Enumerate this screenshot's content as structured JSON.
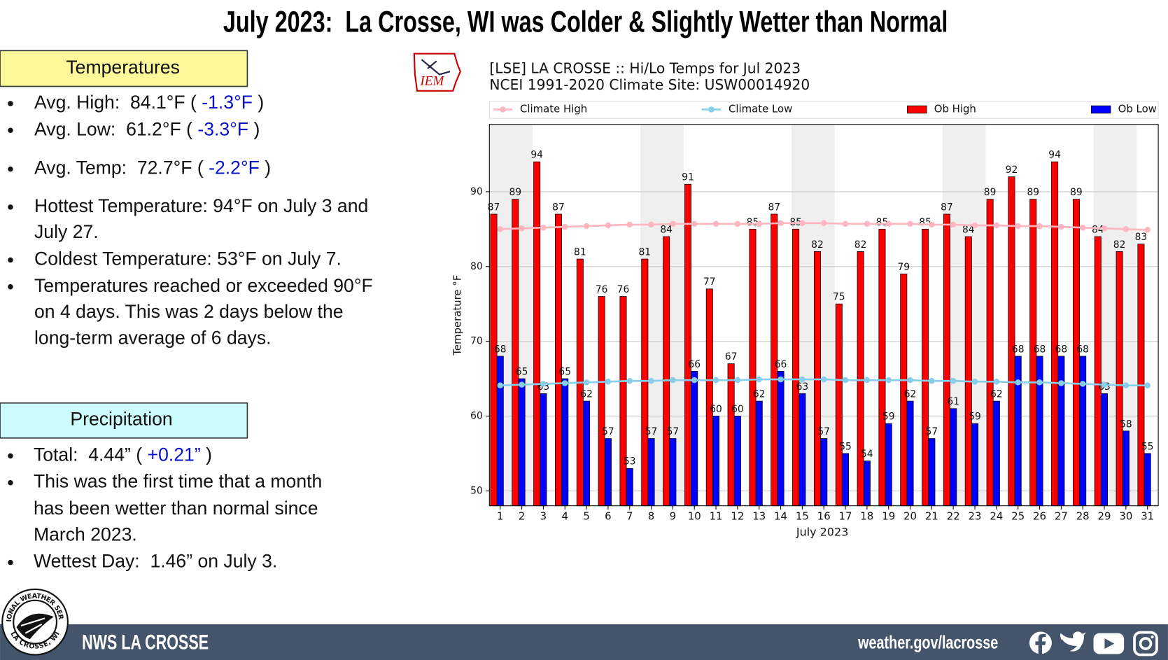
{
  "header": {
    "title": "July 2023:  La Crosse, WI was Colder & Slightly Wetter than Normal"
  },
  "temperatures": {
    "heading": "Temperatures",
    "bullets": [
      {
        "lines": [
          "Avg. High:  84.1°F ( "
        ],
        "anomaly": "-1.3°F",
        "close": " )"
      },
      {
        "lines": [
          "Avg. Low:  61.2°F ( "
        ],
        "anomaly": "-3.3°F",
        "close": " )"
      },
      {
        "lines": [
          "Avg. Temp:  72.7°F ( "
        ],
        "anomaly": "-2.2°F",
        "close": " )"
      },
      {
        "lines": [
          "Hottest Temperature: 94°F on July 3 and",
          "July 27."
        ]
      },
      {
        "lines": [
          "Coldest Temperature: 53°F on July 7."
        ]
      },
      {
        "lines": [
          "Temperatures reached or exceeded 90°F",
          "on 4 days. This was 2 days below the",
          "long-term average of 6 days."
        ]
      }
    ]
  },
  "precipitation": {
    "heading": "Precipitation",
    "bullets": [
      {
        "lines": [
          "Total:  4.44” ( "
        ],
        "anomaly": "+0.21”",
        "close": " )"
      },
      {
        "lines": [
          "This was the first time that a month",
          "has been wetter than normal since",
          "March 2023."
        ]
      },
      {
        "lines": [
          "Wettest Day:  1.46” on July 3."
        ]
      }
    ]
  },
  "logo": {
    "iem": "IEM",
    "nws_top": "NATIONAL WEATHER SERVICE",
    "nws_bottom": "LA CROSSE, WI"
  },
  "footer": {
    "brand": "NWS LA CROSSE",
    "url": "weather.gov/lacrosse"
  },
  "chart_data": {
    "type": "bar",
    "title": "[LSE] LA CROSSE :: Hi/Lo Temps for Jul 2023",
    "subtitle": "NCEI 1991-2020 Climate Site: USW00014920",
    "x_label": "July 2023",
    "y_label": "Temperature °F",
    "x": [
      1,
      2,
      3,
      4,
      5,
      6,
      7,
      8,
      9,
      10,
      11,
      12,
      13,
      14,
      15,
      16,
      17,
      18,
      19,
      20,
      21,
      22,
      23,
      24,
      25,
      26,
      27,
      28,
      29,
      30,
      31
    ],
    "xlim": [
      0.5,
      31.5
    ],
    "xticks": [
      1,
      2,
      3,
      4,
      5,
      6,
      7,
      8,
      9,
      10,
      11,
      12,
      13,
      14,
      15,
      16,
      17,
      18,
      19,
      20,
      21,
      22,
      23,
      24,
      25,
      26,
      27,
      28,
      29,
      30,
      31
    ],
    "ylim": [
      48,
      99
    ],
    "yticks": [
      50,
      60,
      70,
      80,
      90
    ],
    "grid": "y",
    "legend": "top",
    "series": [
      {
        "name": "Climate High",
        "type": "line",
        "color": "#ffb6c1",
        "values": [
          85.0,
          85.1,
          85.2,
          85.3,
          85.4,
          85.5,
          85.6,
          85.6,
          85.7,
          85.7,
          85.7,
          85.7,
          85.7,
          85.8,
          85.8,
          85.8,
          85.7,
          85.7,
          85.7,
          85.7,
          85.6,
          85.6,
          85.5,
          85.5,
          85.4,
          85.4,
          85.3,
          85.2,
          85.1,
          85.0,
          84.9
        ]
      },
      {
        "name": "Climate Low",
        "type": "line",
        "color": "#87ceeb",
        "values": [
          64.1,
          64.2,
          64.3,
          64.4,
          64.5,
          64.6,
          64.7,
          64.7,
          64.8,
          64.8,
          64.8,
          64.8,
          64.9,
          64.9,
          64.9,
          64.9,
          64.8,
          64.8,
          64.8,
          64.8,
          64.7,
          64.7,
          64.6,
          64.6,
          64.5,
          64.5,
          64.4,
          64.3,
          64.2,
          64.1,
          64.1
        ]
      },
      {
        "name": "Ob High",
        "type": "bar",
        "color": "#ff0000",
        "values": [
          87,
          89,
          94,
          87,
          81,
          76,
          76,
          81,
          84,
          91,
          77,
          67,
          85,
          87,
          85,
          82,
          75,
          82,
          85,
          79,
          85,
          87,
          84,
          89,
          92,
          89,
          94,
          89,
          84,
          82,
          83
        ]
      },
      {
        "name": "Ob Low",
        "type": "bar",
        "color": "#0000ff",
        "values": [
          68,
          65,
          63,
          65,
          62,
          57,
          53,
          57,
          57,
          66,
          60,
          60,
          62,
          66,
          63,
          57,
          55,
          54,
          59,
          62,
          57,
          61,
          59,
          62,
          68,
          68,
          68,
          68,
          63,
          58,
          55
        ]
      }
    ]
  }
}
